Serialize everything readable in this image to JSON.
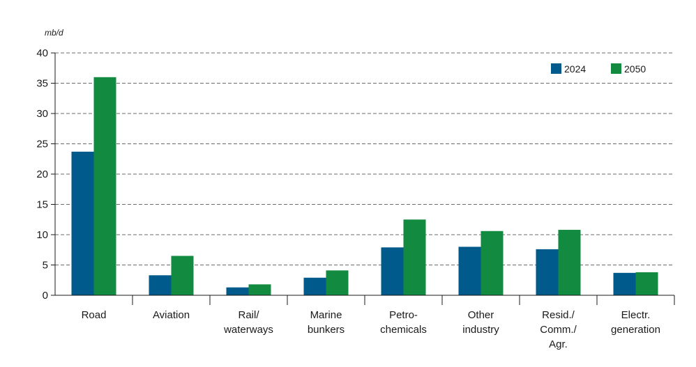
{
  "chart_data": {
    "type": "bar",
    "unit_label": "mb/d",
    "categories": [
      [
        "Road"
      ],
      [
        "Aviation"
      ],
      [
        "Rail/",
        "waterways"
      ],
      [
        "Marine",
        "bunkers"
      ],
      [
        "Petro-",
        "chemicals"
      ],
      [
        "Other",
        "industry"
      ],
      [
        "Resid./",
        "Comm./",
        "Agr."
      ],
      [
        "Electr.",
        "generation"
      ]
    ],
    "series": [
      {
        "name": "2024",
        "color": "#005a8c",
        "values": [
          23.7,
          3.3,
          1.3,
          2.9,
          7.9,
          8.0,
          7.6,
          3.7
        ]
      },
      {
        "name": "2050",
        "color": "#128a3f",
        "values": [
          36.0,
          6.5,
          1.8,
          4.1,
          12.5,
          10.6,
          10.8,
          3.8
        ]
      }
    ],
    "ylim": [
      0,
      40
    ],
    "yticks": [
      0,
      5,
      10,
      15,
      20,
      25,
      30,
      35,
      40
    ],
    "grid": "dashed horizontal",
    "legend_position": "top-right"
  }
}
